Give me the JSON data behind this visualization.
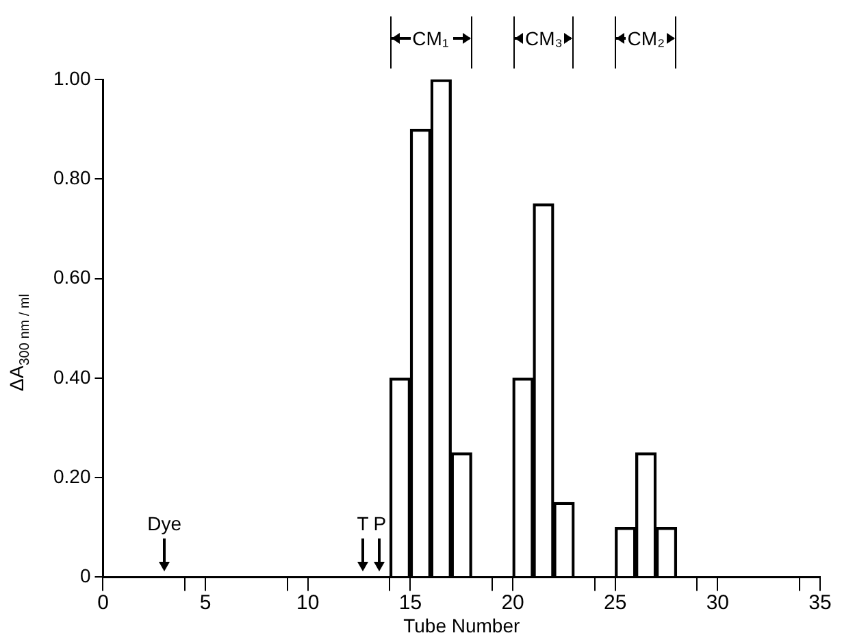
{
  "chart_data": {
    "type": "bar",
    "xlabel": "Tube Number",
    "ylabel": "ΔA$_{300 nm / ml}$",
    "x": [
      14.5,
      15.5,
      16.5,
      17.5,
      20.5,
      21.5,
      22.5,
      25.5,
      26.5,
      27.5
    ],
    "values": [
      0.4,
      0.9,
      1.0,
      0.25,
      0.4,
      0.75,
      0.15,
      0.1,
      0.25,
      0.1
    ],
    "color": "#000000",
    "xlim": [
      0,
      35
    ],
    "xticks": [
      0,
      {
        "value": 4,
        "label": null
      },
      5,
      {
        "value": 9,
        "label": null
      },
      10,
      {
        "value": 14,
        "label": null
      },
      15,
      {
        "value": 19,
        "label": null
      },
      20,
      {
        "value": 24,
        "label": null
      },
      25,
      {
        "value": 29,
        "label": null
      },
      30,
      {
        "value": 34,
        "label": null
      },
      35
    ],
    "ylim": [
      0,
      1
    ],
    "yticks": [
      0,
      {
        "value": 0.2,
        "label": "0.20"
      },
      {
        "value": 0.4,
        "label": "0.40"
      },
      {
        "value": 0.6,
        "label": "0.60"
      },
      {
        "value": 0.8,
        "label": "0.80"
      },
      {
        "value": 1,
        "label": "1.00"
      }
    ],
    "grid": false,
    "legend": false,
    "annotations": [
      "Dye",
      "T",
      "P",
      "CM₁",
      "CM₃",
      "CM₂"
    ]
  }
}
